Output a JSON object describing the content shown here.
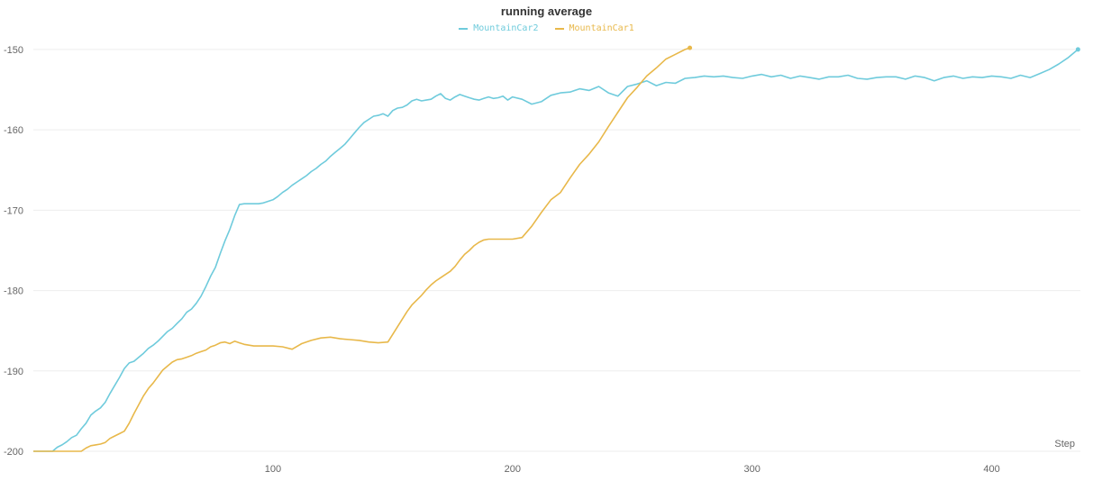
{
  "chart_data": {
    "type": "line",
    "title": "running average",
    "xlabel": "Step",
    "ylabel": "",
    "xlim": [
      0,
      437
    ],
    "ylim": [
      -200,
      -149
    ],
    "xticks": [
      100,
      200,
      300,
      400
    ],
    "yticks": [
      -200,
      -190,
      -180,
      -170,
      -160,
      -150
    ],
    "grid": "horizontal",
    "legend_position": "top-center",
    "series": [
      {
        "name": "MountainCar2",
        "color": "#6fcbdc",
        "x": [
          0,
          8,
          10,
          12,
          14,
          16,
          18,
          20,
          22,
          24,
          26,
          28,
          30,
          32,
          34,
          36,
          38,
          40,
          42,
          44,
          46,
          48,
          50,
          52,
          54,
          56,
          58,
          60,
          62,
          64,
          66,
          68,
          70,
          72,
          74,
          76,
          78,
          80,
          82,
          84,
          86,
          88,
          90,
          92,
          94,
          96,
          98,
          100,
          102,
          104,
          106,
          108,
          110,
          112,
          114,
          116,
          118,
          120,
          122,
          124,
          126,
          128,
          130,
          132,
          134,
          136,
          138,
          140,
          142,
          144,
          146,
          148,
          150,
          152,
          154,
          156,
          158,
          160,
          162,
          164,
          166,
          168,
          170,
          172,
          174,
          176,
          178,
          180,
          182,
          184,
          186,
          188,
          190,
          192,
          194,
          196,
          198,
          200,
          204,
          208,
          212,
          216,
          220,
          224,
          228,
          232,
          236,
          240,
          244,
          248,
          252,
          256,
          260,
          264,
          268,
          272,
          276,
          280,
          284,
          288,
          292,
          296,
          300,
          304,
          308,
          312,
          316,
          320,
          324,
          328,
          332,
          336,
          340,
          344,
          348,
          352,
          356,
          360,
          364,
          368,
          372,
          376,
          380,
          384,
          388,
          392,
          396,
          400,
          404,
          408,
          412,
          416,
          420,
          424,
          428,
          432,
          436
        ],
        "y": [
          -200,
          -200,
          -199.5,
          -199.2,
          -198.8,
          -198.3,
          -198,
          -197.2,
          -196.5,
          -195.5,
          -195,
          -194.6,
          -193.9,
          -192.8,
          -191.8,
          -190.8,
          -189.7,
          -189,
          -188.8,
          -188.3,
          -187.8,
          -187.2,
          -186.8,
          -186.3,
          -185.7,
          -185.1,
          -184.7,
          -184.1,
          -183.5,
          -182.7,
          -182.3,
          -181.6,
          -180.7,
          -179.5,
          -178.2,
          -177.1,
          -175.4,
          -173.8,
          -172.4,
          -170.7,
          -169.3,
          -169.2,
          -169.2,
          -169.2,
          -169.2,
          -169.1,
          -168.9,
          -168.7,
          -168.3,
          -167.8,
          -167.4,
          -166.9,
          -166.5,
          -166.1,
          -165.7,
          -165.2,
          -164.8,
          -164.3,
          -163.9,
          -163.3,
          -162.8,
          -162.3,
          -161.8,
          -161.1,
          -160.4,
          -159.7,
          -159.1,
          -158.7,
          -158.3,
          -158.2,
          -158,
          -158.3,
          -157.6,
          -157.3,
          -157.2,
          -156.9,
          -156.4,
          -156.2,
          -156.4,
          -156.3,
          -156.2,
          -155.8,
          -155.5,
          -156.1,
          -156.3,
          -155.9,
          -155.6,
          -155.8,
          -156,
          -156.2,
          -156.3,
          -156.1,
          -155.9,
          -156.1,
          -156,
          -155.8,
          -156.3,
          -155.9,
          -156.2,
          -156.8,
          -156.5,
          -155.7,
          -155.4,
          -155.3,
          -154.9,
          -155.1,
          -154.6,
          -155.4,
          -155.8,
          -154.6,
          -154.3,
          -153.9,
          -154.5,
          -154.1,
          -154.2,
          -153.6,
          -153.5,
          -153.3,
          -153.4,
          -153.3,
          -153.5,
          -153.6,
          -153.3,
          -153.1,
          -153.4,
          -153.2,
          -153.6,
          -153.3,
          -153.5,
          -153.7,
          -153.4,
          -153.4,
          -153.2,
          -153.6,
          -153.7,
          -153.5,
          -153.4,
          -153.4,
          -153.7,
          -153.3,
          -153.5,
          -153.9,
          -153.5,
          -153.3,
          -153.6,
          -153.4,
          -153.5,
          -153.3,
          -153.4,
          -153.6,
          -153.2,
          -153.5,
          -153.0,
          -152.5,
          -151.8,
          -151.0,
          -150.0
        ],
        "y_smoothed_note": "read from plot"
      },
      {
        "name": "MountainCar1",
        "color": "#e8b84a",
        "x": [
          0,
          20,
          22,
          24,
          26,
          28,
          30,
          32,
          34,
          36,
          38,
          40,
          42,
          44,
          46,
          48,
          50,
          52,
          54,
          56,
          58,
          60,
          62,
          64,
          66,
          68,
          70,
          72,
          74,
          76,
          78,
          80,
          82,
          84,
          86,
          88,
          90,
          92,
          96,
          100,
          104,
          108,
          112,
          116,
          120,
          124,
          128,
          132,
          136,
          140,
          144,
          148,
          152,
          156,
          158,
          160,
          162,
          164,
          166,
          168,
          170,
          172,
          174,
          176,
          178,
          180,
          182,
          184,
          186,
          188,
          190,
          192,
          194,
          196,
          198,
          200,
          204,
          208,
          212,
          216,
          220,
          224,
          228,
          232,
          236,
          240,
          244,
          248,
          252,
          256,
          260,
          264,
          268,
          272,
          274
        ],
        "y": [
          -200,
          -200,
          -199.6,
          -199.3,
          -199.2,
          -199.1,
          -198.9,
          -198.4,
          -198.1,
          -197.8,
          -197.5,
          -196.5,
          -195.3,
          -194.2,
          -193.1,
          -192.2,
          -191.5,
          -190.7,
          -189.9,
          -189.4,
          -188.9,
          -188.6,
          -188.5,
          -188.3,
          -188.1,
          -187.8,
          -187.6,
          -187.4,
          -187.0,
          -186.8,
          -186.5,
          -186.4,
          -186.6,
          -186.3,
          -186.5,
          -186.7,
          -186.8,
          -186.9,
          -186.9,
          -186.9,
          -187.0,
          -187.3,
          -186.6,
          -186.2,
          -185.9,
          -185.8,
          -186.0,
          -186.1,
          -186.2,
          -186.4,
          -186.5,
          -186.4,
          -184.5,
          -182.6,
          -181.8,
          -181.2,
          -180.6,
          -179.9,
          -179.3,
          -178.8,
          -178.4,
          -178.0,
          -177.6,
          -177.0,
          -176.2,
          -175.5,
          -175.0,
          -174.4,
          -174.0,
          -173.7,
          -173.6,
          -173.6,
          -173.6,
          -173.6,
          -173.6,
          -173.6,
          -173.4,
          -172.0,
          -170.3,
          -168.7,
          -167.8,
          -166.0,
          -164.3,
          -163.0,
          -161.5,
          -159.6,
          -157.8,
          -156.0,
          -154.7,
          -153.3,
          -152.3,
          -151.2,
          -150.6,
          -150.0,
          -149.8
        ]
      }
    ]
  }
}
